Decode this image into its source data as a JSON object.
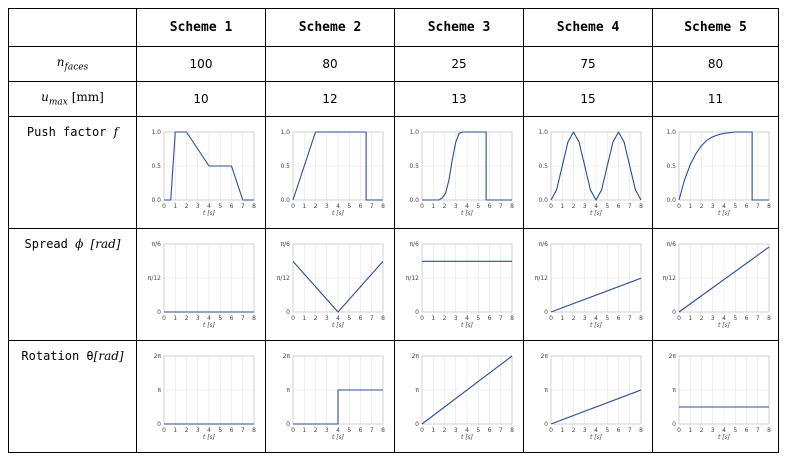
{
  "table": {
    "schemes": [
      "Scheme 1",
      "Scheme 2",
      "Scheme 3",
      "Scheme 4",
      "Scheme 5"
    ],
    "rows": {
      "n_faces": {
        "base": "n",
        "sub": "faces",
        "values": [
          "100",
          "80",
          "25",
          "75",
          "80"
        ]
      },
      "u_max": {
        "base": "u",
        "sub": "max",
        "unit": "[mm]",
        "values": [
          "10",
          "12",
          "13",
          "15",
          "11"
        ]
      },
      "push": {
        "text": "Push factor ",
        "sym": "f"
      },
      "spread": {
        "text": "Spread ",
        "sym": "ϕ",
        "unit": "[rad]"
      },
      "rotation": {
        "text": "Rotation θ",
        "unit": "[rad]"
      }
    }
  },
  "chart_data": [
    {
      "group": "push",
      "scheme": "Scheme 1",
      "type": "line",
      "x": [
        0,
        0.6,
        1,
        2,
        4,
        6,
        7,
        8
      ],
      "y": [
        0,
        0,
        1,
        1,
        0.5,
        0.5,
        0,
        0
      ],
      "xlabel": "t [s]",
      "xticks": [
        "0",
        "1",
        "2",
        "3",
        "4",
        "5",
        "6",
        "7",
        "8"
      ],
      "yticks": [
        "0.0",
        "0.5",
        "1.0"
      ],
      "xlim": [
        0,
        8
      ],
      "ylim": [
        0,
        1
      ],
      "grid": true
    },
    {
      "group": "push",
      "scheme": "Scheme 2",
      "type": "line",
      "x": [
        0,
        2,
        6.5,
        6.5,
        8
      ],
      "y": [
        0,
        1,
        1,
        0,
        0
      ],
      "xlabel": "t [s]",
      "xticks": [
        "0",
        "1",
        "2",
        "3",
        "4",
        "5",
        "6",
        "7",
        "8"
      ],
      "yticks": [
        "0.0",
        "0.5",
        "1.0"
      ],
      "xlim": [
        0,
        8
      ],
      "ylim": [
        0,
        1
      ],
      "grid": true
    },
    {
      "group": "push",
      "scheme": "Scheme 3",
      "type": "line",
      "x": [
        0,
        1.5,
        1.8,
        2.1,
        2.4,
        2.7,
        3,
        3.3,
        3.6,
        5.7,
        5.7,
        8
      ],
      "y": [
        0,
        0,
        0.03,
        0.1,
        0.3,
        0.6,
        0.85,
        0.98,
        1,
        1,
        0,
        0
      ],
      "xlabel": "t [s]",
      "xticks": [
        "0",
        "1",
        "2",
        "3",
        "4",
        "5",
        "6",
        "7",
        "8"
      ],
      "yticks": [
        "0.0",
        "0.5",
        "1.0"
      ],
      "xlim": [
        0,
        8
      ],
      "ylim": [
        0,
        1
      ],
      "grid": true
    },
    {
      "group": "push",
      "scheme": "Scheme 4",
      "type": "line",
      "x": [
        0,
        0.5,
        1,
        1.5,
        2,
        2.5,
        3,
        3.5,
        4,
        4.5,
        5,
        5.5,
        6,
        6.5,
        7,
        7.5,
        8
      ],
      "y": [
        0,
        0.15,
        0.5,
        0.85,
        1,
        0.85,
        0.5,
        0.15,
        0,
        0.15,
        0.5,
        0.85,
        1,
        0.85,
        0.5,
        0.15,
        0
      ],
      "xlabel": "t [s]",
      "xticks": [
        "0",
        "1",
        "2",
        "3",
        "4",
        "5",
        "6",
        "7",
        "8"
      ],
      "yticks": [
        "0.0",
        "0.5",
        "1.0"
      ],
      "xlim": [
        0,
        8
      ],
      "ylim": [
        0,
        1
      ],
      "grid": true
    },
    {
      "group": "push",
      "scheme": "Scheme 5",
      "type": "line",
      "x": [
        0,
        0.5,
        1,
        1.5,
        2,
        2.5,
        3,
        3.5,
        4,
        4.5,
        5,
        6.5,
        6.5,
        8
      ],
      "y": [
        0,
        0.3,
        0.52,
        0.68,
        0.8,
        0.88,
        0.93,
        0.96,
        0.98,
        0.99,
        1,
        1,
        0,
        0
      ],
      "xlabel": "t [s]",
      "xticks": [
        "0",
        "1",
        "2",
        "3",
        "4",
        "5",
        "6",
        "7",
        "8"
      ],
      "yticks": [
        "0.0",
        "0.5",
        "1.0"
      ],
      "xlim": [
        0,
        8
      ],
      "ylim": [
        0,
        1
      ],
      "grid": true
    },
    {
      "group": "spread",
      "scheme": "Scheme 1",
      "type": "line",
      "x": [
        0,
        8
      ],
      "y": [
        0,
        0
      ],
      "xlabel": "t [s]",
      "xticks": [
        "0",
        "1",
        "2",
        "3",
        "4",
        "5",
        "6",
        "7",
        "8"
      ],
      "yticks": [
        "0",
        "π/12",
        "π/6"
      ],
      "xlim": [
        0,
        8
      ],
      "ylim": [
        0,
        0.5236
      ],
      "grid": true
    },
    {
      "group": "spread",
      "scheme": "Scheme 2",
      "type": "line",
      "x": [
        0,
        4,
        8
      ],
      "y": [
        0.39,
        0,
        0.39
      ],
      "xlabel": "t [s]",
      "xticks": [
        "0",
        "1",
        "2",
        "3",
        "4",
        "5",
        "6",
        "7",
        "8"
      ],
      "yticks": [
        "0",
        "π/12",
        "π/6"
      ],
      "xlim": [
        0,
        8
      ],
      "ylim": [
        0,
        0.5236
      ],
      "grid": true
    },
    {
      "group": "spread",
      "scheme": "Scheme 3",
      "type": "line",
      "x": [
        0,
        8
      ],
      "y": [
        0.39,
        0.39
      ],
      "xlabel": "t [s]",
      "xticks": [
        "0",
        "1",
        "2",
        "3",
        "4",
        "5",
        "6",
        "7",
        "8"
      ],
      "yticks": [
        "0",
        "π/12",
        "π/6"
      ],
      "xlim": [
        0,
        8
      ],
      "ylim": [
        0,
        0.5236
      ],
      "grid": true
    },
    {
      "group": "spread",
      "scheme": "Scheme 4",
      "type": "line",
      "x": [
        0,
        8
      ],
      "y": [
        0,
        0.26
      ],
      "xlabel": "t [s]",
      "xticks": [
        "0",
        "1",
        "2",
        "3",
        "4",
        "5",
        "6",
        "7",
        "8"
      ],
      "yticks": [
        "0",
        "π/12",
        "π/6"
      ],
      "xlim": [
        0,
        8
      ],
      "ylim": [
        0,
        0.5236
      ],
      "grid": true
    },
    {
      "group": "spread",
      "scheme": "Scheme 5",
      "type": "line",
      "x": [
        0,
        8
      ],
      "y": [
        0,
        0.5
      ],
      "xlabel": "t [s]",
      "xticks": [
        "0",
        "1",
        "2",
        "3",
        "4",
        "5",
        "6",
        "7",
        "8"
      ],
      "yticks": [
        "0",
        "π/12",
        "π/6"
      ],
      "xlim": [
        0,
        8
      ],
      "ylim": [
        0,
        0.5236
      ],
      "grid": true
    },
    {
      "group": "rotation",
      "scheme": "Scheme 1",
      "type": "line",
      "x": [
        0,
        8
      ],
      "y": [
        0,
        0
      ],
      "xlabel": "t [s]",
      "xticks": [
        "0",
        "1",
        "2",
        "3",
        "4",
        "5",
        "6",
        "7",
        "8"
      ],
      "yticks": [
        "0",
        "π",
        "2π"
      ],
      "xlim": [
        0,
        8
      ],
      "ylim": [
        0,
        6.2832
      ],
      "grid": true
    },
    {
      "group": "rotation",
      "scheme": "Scheme 2",
      "type": "line",
      "x": [
        0,
        4,
        4,
        8
      ],
      "y": [
        0,
        0,
        3.1416,
        3.1416
      ],
      "xlabel": "t [s]",
      "xticks": [
        "0",
        "1",
        "2",
        "3",
        "4",
        "5",
        "6",
        "7",
        "8"
      ],
      "yticks": [
        "0",
        "π",
        "2π"
      ],
      "xlim": [
        0,
        8
      ],
      "ylim": [
        0,
        6.2832
      ],
      "grid": true
    },
    {
      "group": "rotation",
      "scheme": "Scheme 3",
      "type": "line",
      "x": [
        0,
        8
      ],
      "y": [
        0,
        6.2832
      ],
      "xlabel": "t [s]",
      "xticks": [
        "0",
        "1",
        "2",
        "3",
        "4",
        "5",
        "6",
        "7",
        "8"
      ],
      "yticks": [
        "0",
        "π",
        "2π"
      ],
      "xlim": [
        0,
        8
      ],
      "ylim": [
        0,
        6.2832
      ],
      "grid": true
    },
    {
      "group": "rotation",
      "scheme": "Scheme 4",
      "type": "line",
      "x": [
        0,
        8
      ],
      "y": [
        0,
        3.1416
      ],
      "xlabel": "t [s]",
      "xticks": [
        "0",
        "1",
        "2",
        "3",
        "4",
        "5",
        "6",
        "7",
        "8"
      ],
      "yticks": [
        "0",
        "π",
        "2π"
      ],
      "xlim": [
        0,
        8
      ],
      "ylim": [
        0,
        6.2832
      ],
      "grid": true
    },
    {
      "group": "rotation",
      "scheme": "Scheme 5",
      "type": "line",
      "x": [
        0,
        8
      ],
      "y": [
        1.571,
        1.571
      ],
      "xlabel": "t [s]",
      "xticks": [
        "0",
        "1",
        "2",
        "3",
        "4",
        "5",
        "6",
        "7",
        "8"
      ],
      "yticks": [
        "0",
        "π",
        "2π"
      ],
      "xlim": [
        0,
        8
      ],
      "ylim": [
        0,
        6.2832
      ],
      "grid": true
    }
  ]
}
